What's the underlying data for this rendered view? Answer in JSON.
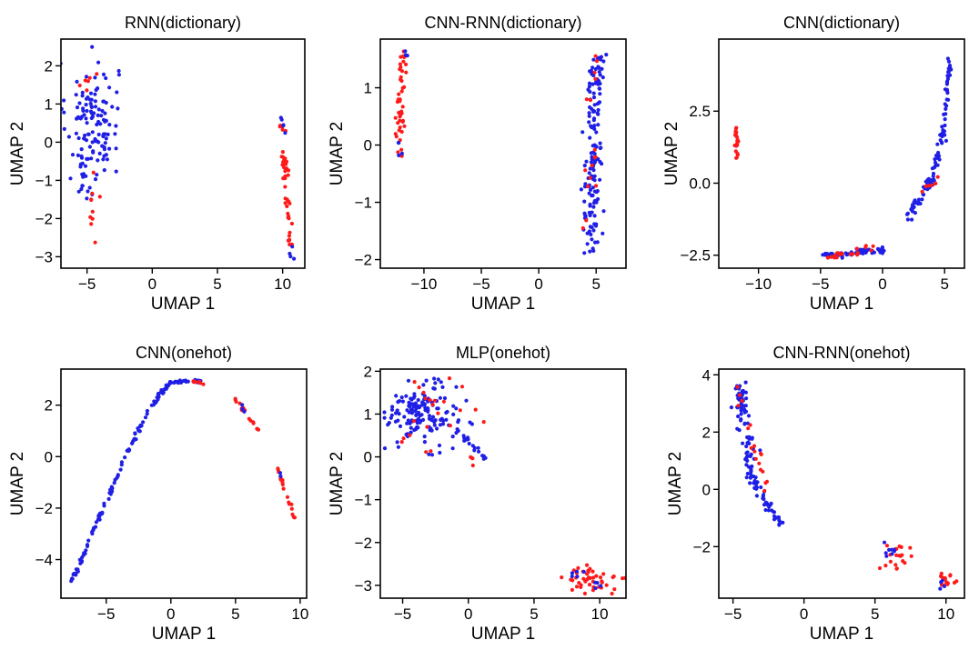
{
  "figure": {
    "colors": {
      "red": "#ff1a1a",
      "blue": "#1f1fe6",
      "frame": "#000000"
    }
  },
  "chart_data": [
    {
      "type": "scatter",
      "title": "RNN(dictionary)",
      "xlabel": "UMAP 1",
      "ylabel": "UMAP 2",
      "xlim": [
        -7,
        11.7
      ],
      "ylim": [
        -3.3,
        2.7
      ],
      "xticks": [
        -5,
        0,
        5,
        10
      ],
      "yticks": [
        -3,
        -2,
        -1,
        0,
        1,
        2
      ],
      "grid": false,
      "legend": "none",
      "clusters": [
        {
          "color": "blue",
          "kind": "blob",
          "cx": -4.6,
          "cy": 0.6,
          "sx": 1.0,
          "sy": 0.75,
          "n": 120
        },
        {
          "color": "blue",
          "kind": "blob",
          "cx": -5.3,
          "cy": -0.9,
          "sx": 0.4,
          "sy": 0.4,
          "n": 18
        },
        {
          "color": "red",
          "kind": "blob",
          "cx": -4.5,
          "cy": -1.7,
          "sx": 0.15,
          "sy": 0.35,
          "n": 10
        },
        {
          "color": "red",
          "kind": "blob",
          "cx": -4.8,
          "cy": 1.5,
          "sx": 0.5,
          "sy": 0.3,
          "n": 6
        },
        {
          "color": "red",
          "kind": "line",
          "x1": 9.8,
          "y1": 0.6,
          "x2": 10.6,
          "y2": -2.7,
          "spread": 0.25,
          "n": 45
        },
        {
          "color": "blue",
          "kind": "line",
          "x1": 9.9,
          "y1": 0.7,
          "x2": 10.2,
          "y2": 0.2,
          "spread": 0.1,
          "n": 5
        },
        {
          "color": "blue",
          "kind": "blob",
          "cx": 10.6,
          "cy": -2.9,
          "sx": 0.1,
          "sy": 0.15,
          "n": 4
        }
      ]
    },
    {
      "type": "scatter",
      "title": "CNN-RNN(dictionary)",
      "xlabel": "UMAP 1",
      "ylabel": "UMAP 2",
      "xlim": [
        -13.8,
        7.6
      ],
      "ylim": [
        -2.15,
        1.85
      ],
      "xticks": [
        -10,
        -5,
        0,
        5
      ],
      "yticks": [
        -2,
        -1,
        0,
        1
      ],
      "grid": false,
      "legend": "none",
      "clusters": [
        {
          "color": "red",
          "kind": "line",
          "x1": -11.8,
          "y1": 1.6,
          "x2": -12.3,
          "y2": -0.2,
          "spread": 0.35,
          "n": 45
        },
        {
          "color": "blue",
          "kind": "blob",
          "cx": -12.2,
          "cy": -0.1,
          "sx": 0.15,
          "sy": 0.15,
          "n": 4
        },
        {
          "color": "blue",
          "kind": "blob",
          "cx": -11.6,
          "cy": 1.5,
          "sx": 0.15,
          "sy": 0.15,
          "n": 3
        },
        {
          "color": "blue",
          "kind": "line",
          "x1": 5.0,
          "y1": 1.6,
          "x2": 4.6,
          "y2": -1.9,
          "spread": 0.8,
          "n": 150
        },
        {
          "color": "red",
          "kind": "line",
          "x1": 4.8,
          "y1": 1.7,
          "x2": 4.2,
          "y2": -1.5,
          "spread": 0.7,
          "n": 16
        }
      ]
    },
    {
      "type": "scatter",
      "title": "CNN(dictionary)",
      "xlabel": "UMAP 1",
      "ylabel": "UMAP 2",
      "xlim": [
        -13.2,
        6.6
      ],
      "ylim": [
        -2.95,
        5.0
      ],
      "xticks": [
        -10,
        -5,
        0,
        5
      ],
      "yticks": [
        -2.5,
        0.0,
        2.5
      ],
      "ytick_format": "1dp",
      "grid": false,
      "legend": "none",
      "clusters": [
        {
          "color": "red",
          "kind": "line",
          "x1": -11.8,
          "y1": 1.9,
          "x2": -11.7,
          "y2": 0.9,
          "spread": 0.12,
          "n": 22
        },
        {
          "color": "blue",
          "kind": "line",
          "x1": 5.4,
          "y1": 4.5,
          "x2": 5.0,
          "y2": 2.0,
          "spread": 0.15,
          "n": 28
        },
        {
          "color": "blue",
          "kind": "line",
          "x1": 5.0,
          "y1": 2.0,
          "x2": 4.0,
          "y2": 0.2,
          "spread": 0.25,
          "n": 30
        },
        {
          "color": "blue",
          "kind": "line",
          "x1": 4.0,
          "y1": 0.2,
          "x2": 2.0,
          "y2": -1.3,
          "spread": 0.35,
          "n": 40
        },
        {
          "color": "red",
          "kind": "line",
          "x1": 3.0,
          "y1": -0.3,
          "x2": 4.5,
          "y2": 0.2,
          "spread": 0.2,
          "n": 6
        },
        {
          "color": "blue",
          "kind": "line",
          "x1": -4.8,
          "y1": -2.55,
          "x2": 0.2,
          "y2": -2.3,
          "spread": 0.25,
          "n": 50
        },
        {
          "color": "red",
          "kind": "line",
          "x1": -4.8,
          "y1": -2.6,
          "x2": -0.5,
          "y2": -2.25,
          "spread": 0.25,
          "n": 20
        }
      ]
    },
    {
      "type": "scatter",
      "title": "CNN(onehot)",
      "xlabel": "UMAP 1",
      "ylabel": "UMAP 2",
      "xlim": [
        -8.5,
        10.5
      ],
      "ylim": [
        -5.5,
        3.4
      ],
      "xticks": [
        -5,
        0,
        5,
        10
      ],
      "yticks": [
        -4,
        -2,
        0,
        2
      ],
      "grid": false,
      "legend": "none",
      "clusters": [
        {
          "color": "blue",
          "kind": "line",
          "x1": -7.7,
          "y1": -4.9,
          "x2": -3.5,
          "y2": 0.0,
          "spread": 0.12,
          "n": 60
        },
        {
          "color": "blue",
          "kind": "line",
          "x1": -3.5,
          "y1": 0.0,
          "x2": -1.5,
          "y2": 2.0,
          "spread": 0.12,
          "n": 25
        },
        {
          "color": "blue",
          "kind": "line",
          "x1": -1.5,
          "y1": 2.0,
          "x2": 0.0,
          "y2": 2.9,
          "spread": 0.15,
          "n": 25
        },
        {
          "color": "blue",
          "kind": "line",
          "x1": 0.0,
          "y1": 2.9,
          "x2": 2.3,
          "y2": 2.95,
          "spread": 0.12,
          "n": 25
        },
        {
          "color": "red",
          "kind": "line",
          "x1": 1.0,
          "y1": 3.0,
          "x2": 2.6,
          "y2": 2.8,
          "spread": 0.12,
          "n": 8
        },
        {
          "color": "red",
          "kind": "line",
          "x1": 4.9,
          "y1": 2.3,
          "x2": 6.8,
          "y2": 1.0,
          "spread": 0.12,
          "n": 16
        },
        {
          "color": "red",
          "kind": "line",
          "x1": 8.2,
          "y1": -0.4,
          "x2": 9.7,
          "y2": -2.5,
          "spread": 0.12,
          "n": 20
        },
        {
          "color": "blue",
          "kind": "blob",
          "cx": 5.6,
          "cy": 1.9,
          "sx": 0.1,
          "sy": 0.1,
          "n": 3
        },
        {
          "color": "blue",
          "kind": "blob",
          "cx": 8.5,
          "cy": -0.8,
          "sx": 0.1,
          "sy": 0.1,
          "n": 2
        }
      ]
    },
    {
      "type": "scatter",
      "title": "MLP(onehot)",
      "xlabel": "UMAP 1",
      "ylabel": "UMAP 2",
      "xlim": [
        -6.7,
        12.0
      ],
      "ylim": [
        -3.3,
        2.05
      ],
      "xticks": [
        -5,
        0,
        5,
        10
      ],
      "yticks": [
        -3,
        -2,
        -1,
        0,
        1,
        2
      ],
      "grid": false,
      "legend": "none",
      "clusters": [
        {
          "color": "blue",
          "kind": "blob",
          "cx": -3.5,
          "cy": 1.0,
          "sx": 1.3,
          "sy": 0.35,
          "n": 150
        },
        {
          "color": "blue",
          "kind": "line",
          "x1": -1.0,
          "y1": 0.7,
          "x2": 1.3,
          "y2": -0.05,
          "spread": 0.25,
          "n": 18
        },
        {
          "color": "red",
          "kind": "blob",
          "cx": -2.5,
          "cy": 1.0,
          "sx": 1.8,
          "sy": 0.4,
          "n": 22
        },
        {
          "color": "red",
          "kind": "line",
          "x1": 0.0,
          "y1": 0.4,
          "x2": 0.3,
          "y2": -0.2,
          "spread": 0.1,
          "n": 4
        },
        {
          "color": "red",
          "kind": "blob",
          "cx": 9.5,
          "cy": -2.85,
          "sx": 1.0,
          "sy": 0.17,
          "n": 45
        },
        {
          "color": "blue",
          "kind": "blob",
          "cx": 8.3,
          "cy": -2.7,
          "sx": 0.25,
          "sy": 0.12,
          "n": 5
        },
        {
          "color": "blue",
          "kind": "blob",
          "cx": 9.9,
          "cy": -2.95,
          "sx": 0.25,
          "sy": 0.06,
          "n": 4
        }
      ]
    },
    {
      "type": "scatter",
      "title": "CNN-RNN(onehot)",
      "xlabel": "UMAP 1",
      "ylabel": "UMAP 2",
      "xlim": [
        -6.0,
        11.3
      ],
      "ylim": [
        -3.8,
        4.2
      ],
      "xticks": [
        -5,
        0,
        5,
        10
      ],
      "yticks": [
        -2,
        0,
        2,
        4
      ],
      "grid": false,
      "legend": "none",
      "clusters": [
        {
          "color": "blue",
          "kind": "line",
          "x1": -4.6,
          "y1": 3.7,
          "x2": -3.7,
          "y2": 0.4,
          "spread": 0.5,
          "n": 80
        },
        {
          "color": "blue",
          "kind": "line",
          "x1": -3.7,
          "y1": 0.4,
          "x2": -1.7,
          "y2": -1.2,
          "spread": 0.35,
          "n": 40
        },
        {
          "color": "red",
          "kind": "line",
          "x1": -4.6,
          "y1": 3.7,
          "x2": -2.5,
          "y2": 0.0,
          "spread": 0.5,
          "n": 18
        },
        {
          "color": "red",
          "kind": "blob",
          "cx": 6.5,
          "cy": -2.4,
          "sx": 0.6,
          "sy": 0.25,
          "n": 20
        },
        {
          "color": "blue",
          "kind": "blob",
          "cx": 5.9,
          "cy": -2.1,
          "sx": 0.35,
          "sy": 0.15,
          "n": 8
        },
        {
          "color": "red",
          "kind": "blob",
          "cx": 10.0,
          "cy": -3.15,
          "sx": 0.3,
          "sy": 0.15,
          "n": 16
        },
        {
          "color": "blue",
          "kind": "blob",
          "cx": 9.8,
          "cy": -3.3,
          "sx": 0.15,
          "sy": 0.08,
          "n": 4
        }
      ]
    }
  ]
}
